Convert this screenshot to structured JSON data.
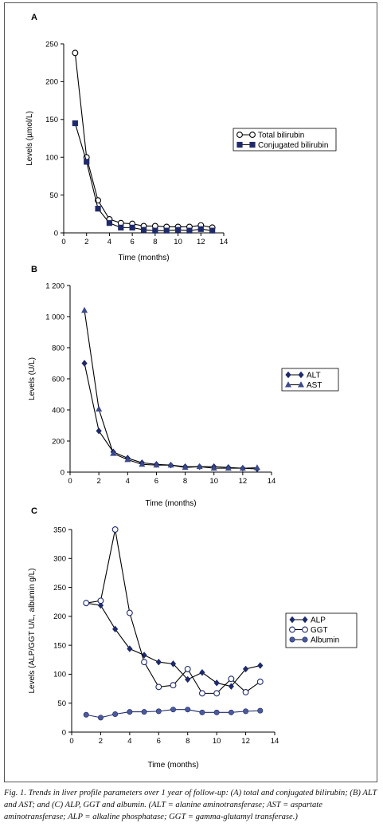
{
  "caption": "Fig. 1. Trends in liver profile parameters over 1 year of follow-up: (A) total and conjugated bilirubin; (B) ALT and AST; and (C) ALP, GGT and albumin.  (ALT = alanine aminotransferase; AST = aspartate aminotransferase; ALP = alkaline phosphatase; GGT = gamma-glutamyl transferase.)",
  "chart_data": [
    {
      "panel": "A",
      "type": "line",
      "xlabel": "Time (months)",
      "ylabel": "Levels (µmol/L)",
      "xlim": [
        0,
        14
      ],
      "ylim": [
        0,
        250
      ],
      "xticks": [
        "0",
        "2",
        "4",
        "6",
        "8",
        "10",
        "12",
        "14"
      ],
      "yticks": [
        "0",
        "50",
        "100",
        "150",
        "200",
        "250"
      ],
      "grid": false,
      "legend_position": "right",
      "series": [
        {
          "name": "Total bilirubin",
          "marker": "circle-open",
          "color": "#000000",
          "x": [
            1,
            2,
            3,
            4,
            5,
            6,
            7,
            8,
            9,
            10,
            11,
            12,
            13
          ],
          "y": [
            238,
            100,
            43,
            18,
            13,
            12,
            9,
            9,
            8,
            8,
            8,
            10,
            7
          ]
        },
        {
          "name": "Conjugated bilirubin",
          "marker": "square-filled",
          "color": "#1f2a6b",
          "x": [
            1,
            2,
            3,
            4,
            5,
            6,
            7,
            8,
            9,
            10,
            11,
            12,
            13
          ],
          "y": [
            145,
            94,
            32,
            13,
            7,
            7,
            4,
            3,
            3,
            4,
            3,
            5,
            3
          ]
        }
      ]
    },
    {
      "panel": "B",
      "type": "line",
      "xlabel": "Time (months)",
      "ylabel": "Levels (U/L)",
      "xlim": [
        0,
        14
      ],
      "ylim": [
        0,
        1200
      ],
      "xticks": [
        "0",
        "2",
        "4",
        "6",
        "8",
        "10",
        "12",
        "14"
      ],
      "yticks": [
        "0",
        "200",
        "400",
        "600",
        "800",
        "1 000",
        "1 200"
      ],
      "grid": false,
      "legend_position": "right",
      "series": [
        {
          "name": "ALT",
          "marker": "diamond-filled",
          "color": "#1f2a6b",
          "x": [
            1,
            2,
            3,
            4,
            5,
            6,
            7,
            8,
            9,
            10,
            11,
            12,
            13
          ],
          "y": [
            700,
            265,
            130,
            90,
            60,
            50,
            45,
            35,
            35,
            35,
            30,
            25,
            20
          ]
        },
        {
          "name": "AST",
          "marker": "triangle-filled",
          "color": "#3c4a8c",
          "x": [
            1,
            2,
            3,
            4,
            5,
            6,
            7,
            8,
            9,
            10,
            11,
            12,
            13
          ],
          "y": [
            1040,
            405,
            120,
            80,
            50,
            45,
            45,
            30,
            35,
            25,
            25,
            25,
            28
          ]
        }
      ]
    },
    {
      "panel": "C",
      "type": "line",
      "xlabel": "Time (months)",
      "ylabel": "Levels (ALP/GGT U/L, albumin g/L)",
      "xlim": [
        0,
        14
      ],
      "ylim": [
        0,
        350
      ],
      "xticks": [
        "0",
        "2",
        "4",
        "6",
        "8",
        "10",
        "12",
        "14"
      ],
      "yticks": [
        "0",
        "50",
        "100",
        "150",
        "200",
        "250",
        "300",
        "350"
      ],
      "grid": false,
      "legend_position": "right",
      "series": [
        {
          "name": "ALP",
          "marker": "diamond-filled",
          "color": "#1f2a6b",
          "x": [
            1,
            2,
            3,
            4,
            5,
            6,
            7,
            8,
            9,
            10,
            11,
            12,
            13
          ],
          "y": [
            223,
            219,
            178,
            144,
            133,
            121,
            118,
            91,
            103,
            85,
            79,
            109,
            115
          ]
        },
        {
          "name": "GGT",
          "marker": "circle-open",
          "color": "#1f2a6b",
          "x": [
            1,
            2,
            3,
            4,
            5,
            6,
            7,
            8,
            9,
            10,
            11,
            12,
            13
          ],
          "y": [
            223,
            227,
            350,
            206,
            121,
            78,
            81,
            109,
            67,
            67,
            92,
            69,
            87
          ]
        },
        {
          "name": "Albumin",
          "marker": "circle-filled",
          "color": "#4b5a9a",
          "x": [
            1,
            2,
            3,
            4,
            5,
            6,
            7,
            8,
            9,
            10,
            11,
            12,
            13
          ],
          "y": [
            30,
            25,
            31,
            35,
            35,
            36,
            39,
            39,
            34,
            34,
            34,
            36,
            37
          ]
        }
      ]
    }
  ]
}
